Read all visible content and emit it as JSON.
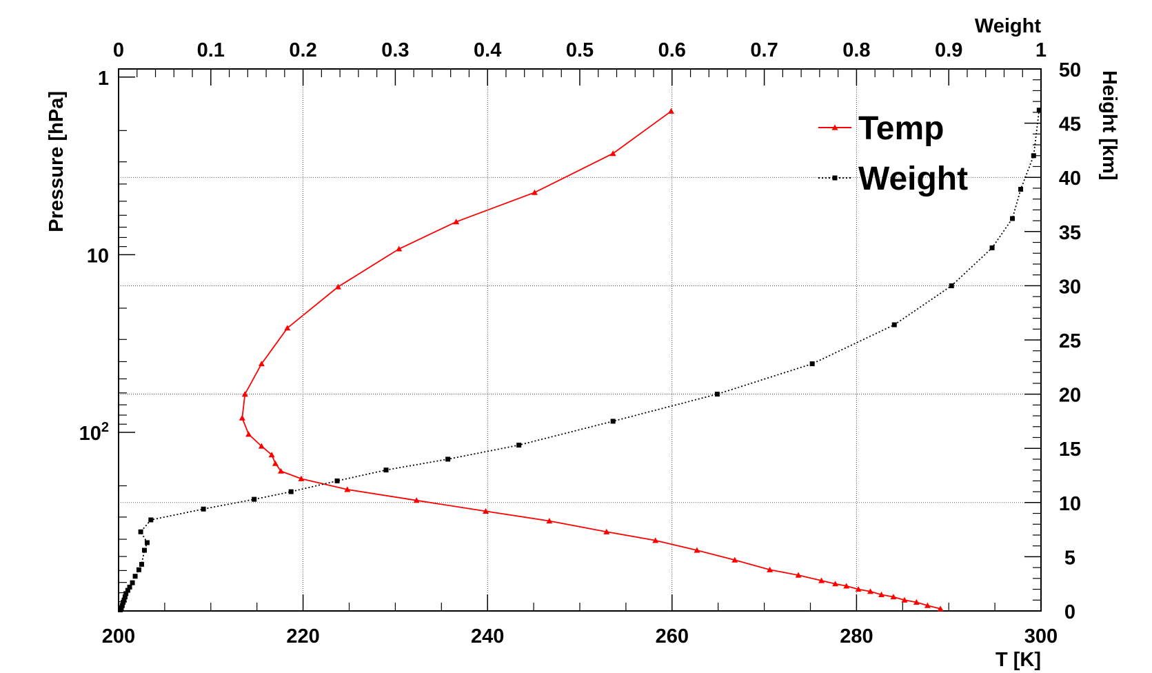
{
  "chart_data": {
    "type": "line",
    "title": "",
    "grid": true,
    "legend_placement": "top-right",
    "axes": {
      "bottom": {
        "label": "T [K]",
        "range": [
          200,
          300
        ],
        "ticks": [
          200,
          220,
          240,
          260,
          280,
          300
        ]
      },
      "top": {
        "label": "Weight",
        "range": [
          0,
          1
        ],
        "ticks": [
          0,
          0.1,
          0.2,
          0.3,
          0.4,
          0.5,
          0.6,
          0.7,
          0.8,
          0.9,
          1
        ]
      },
      "left": {
        "label": "Pressure [hPa]",
        "scale": "log",
        "range": [
          0.9,
          1013
        ],
        "tick_labels": [
          "1",
          "10",
          "10^2"
        ]
      },
      "right": {
        "label": "Height [km]",
        "range": [
          0,
          50
        ],
        "ticks": [
          0,
          5,
          10,
          15,
          20,
          25,
          30,
          35,
          40,
          45,
          50
        ]
      }
    },
    "series": [
      {
        "name": "Temp",
        "color": "#ff0000",
        "marker": "triangle",
        "line_style": "solid",
        "x_axis": "T [K]",
        "y_axis": "Height [km]",
        "points": [
          [
            289.1,
            0.2
          ],
          [
            287.7,
            0.5
          ],
          [
            286.5,
            0.8
          ],
          [
            285.2,
            1.0
          ],
          [
            284.0,
            1.3
          ],
          [
            282.7,
            1.5
          ],
          [
            281.5,
            1.8
          ],
          [
            280.2,
            2.0
          ],
          [
            278.9,
            2.3
          ],
          [
            277.7,
            2.5
          ],
          [
            276.2,
            2.8
          ],
          [
            273.7,
            3.3
          ],
          [
            270.6,
            3.8
          ],
          [
            266.8,
            4.7
          ],
          [
            262.7,
            5.6
          ],
          [
            258.2,
            6.5
          ],
          [
            252.9,
            7.3
          ],
          [
            246.7,
            8.3
          ],
          [
            239.8,
            9.2
          ],
          [
            232.3,
            10.2
          ],
          [
            224.8,
            11.2
          ],
          [
            219.8,
            12.2
          ],
          [
            217.6,
            12.9
          ],
          [
            217.0,
            13.6
          ],
          [
            216.6,
            14.4
          ],
          [
            215.5,
            15.2
          ],
          [
            214.1,
            16.3
          ],
          [
            213.4,
            17.8
          ],
          [
            213.7,
            20.0
          ],
          [
            215.5,
            22.8
          ],
          [
            218.3,
            26.1
          ],
          [
            223.8,
            29.9
          ],
          [
            230.4,
            33.4
          ],
          [
            236.6,
            35.9
          ],
          [
            245.1,
            38.6
          ],
          [
            253.6,
            42.2
          ],
          [
            259.9,
            46.1
          ]
        ]
      },
      {
        "name": "Weight",
        "color": "#000000",
        "marker": "square",
        "line_style": "dotted",
        "x_axis": "Weight",
        "y_axis": "Height [km]",
        "points": [
          [
            0.002,
            0.1
          ],
          [
            0.003,
            0.3
          ],
          [
            0.004,
            0.5
          ],
          [
            0.005,
            0.8
          ],
          [
            0.006,
            1.0
          ],
          [
            0.007,
            1.3
          ],
          [
            0.008,
            1.6
          ],
          [
            0.01,
            1.9
          ],
          [
            0.012,
            2.2
          ],
          [
            0.015,
            2.6
          ],
          [
            0.018,
            3.2
          ],
          [
            0.022,
            3.8
          ],
          [
            0.025,
            4.3
          ],
          [
            0.028,
            5.6
          ],
          [
            0.031,
            6.3
          ],
          [
            0.024,
            7.3
          ],
          [
            0.035,
            8.4
          ],
          [
            0.092,
            9.4
          ],
          [
            0.147,
            10.3
          ],
          [
            0.187,
            11.0
          ],
          [
            0.237,
            12.0
          ],
          [
            0.29,
            13.0
          ],
          [
            0.357,
            14.0
          ],
          [
            0.434,
            15.3
          ],
          [
            0.536,
            17.5
          ],
          [
            0.649,
            20.0
          ],
          [
            0.752,
            22.8
          ],
          [
            0.841,
            26.4
          ],
          [
            0.903,
            30.0
          ],
          [
            0.947,
            33.5
          ],
          [
            0.969,
            36.2
          ],
          [
            0.978,
            38.9
          ],
          [
            0.992,
            42.0
          ],
          [
            0.998,
            46.2
          ]
        ]
      }
    ]
  }
}
